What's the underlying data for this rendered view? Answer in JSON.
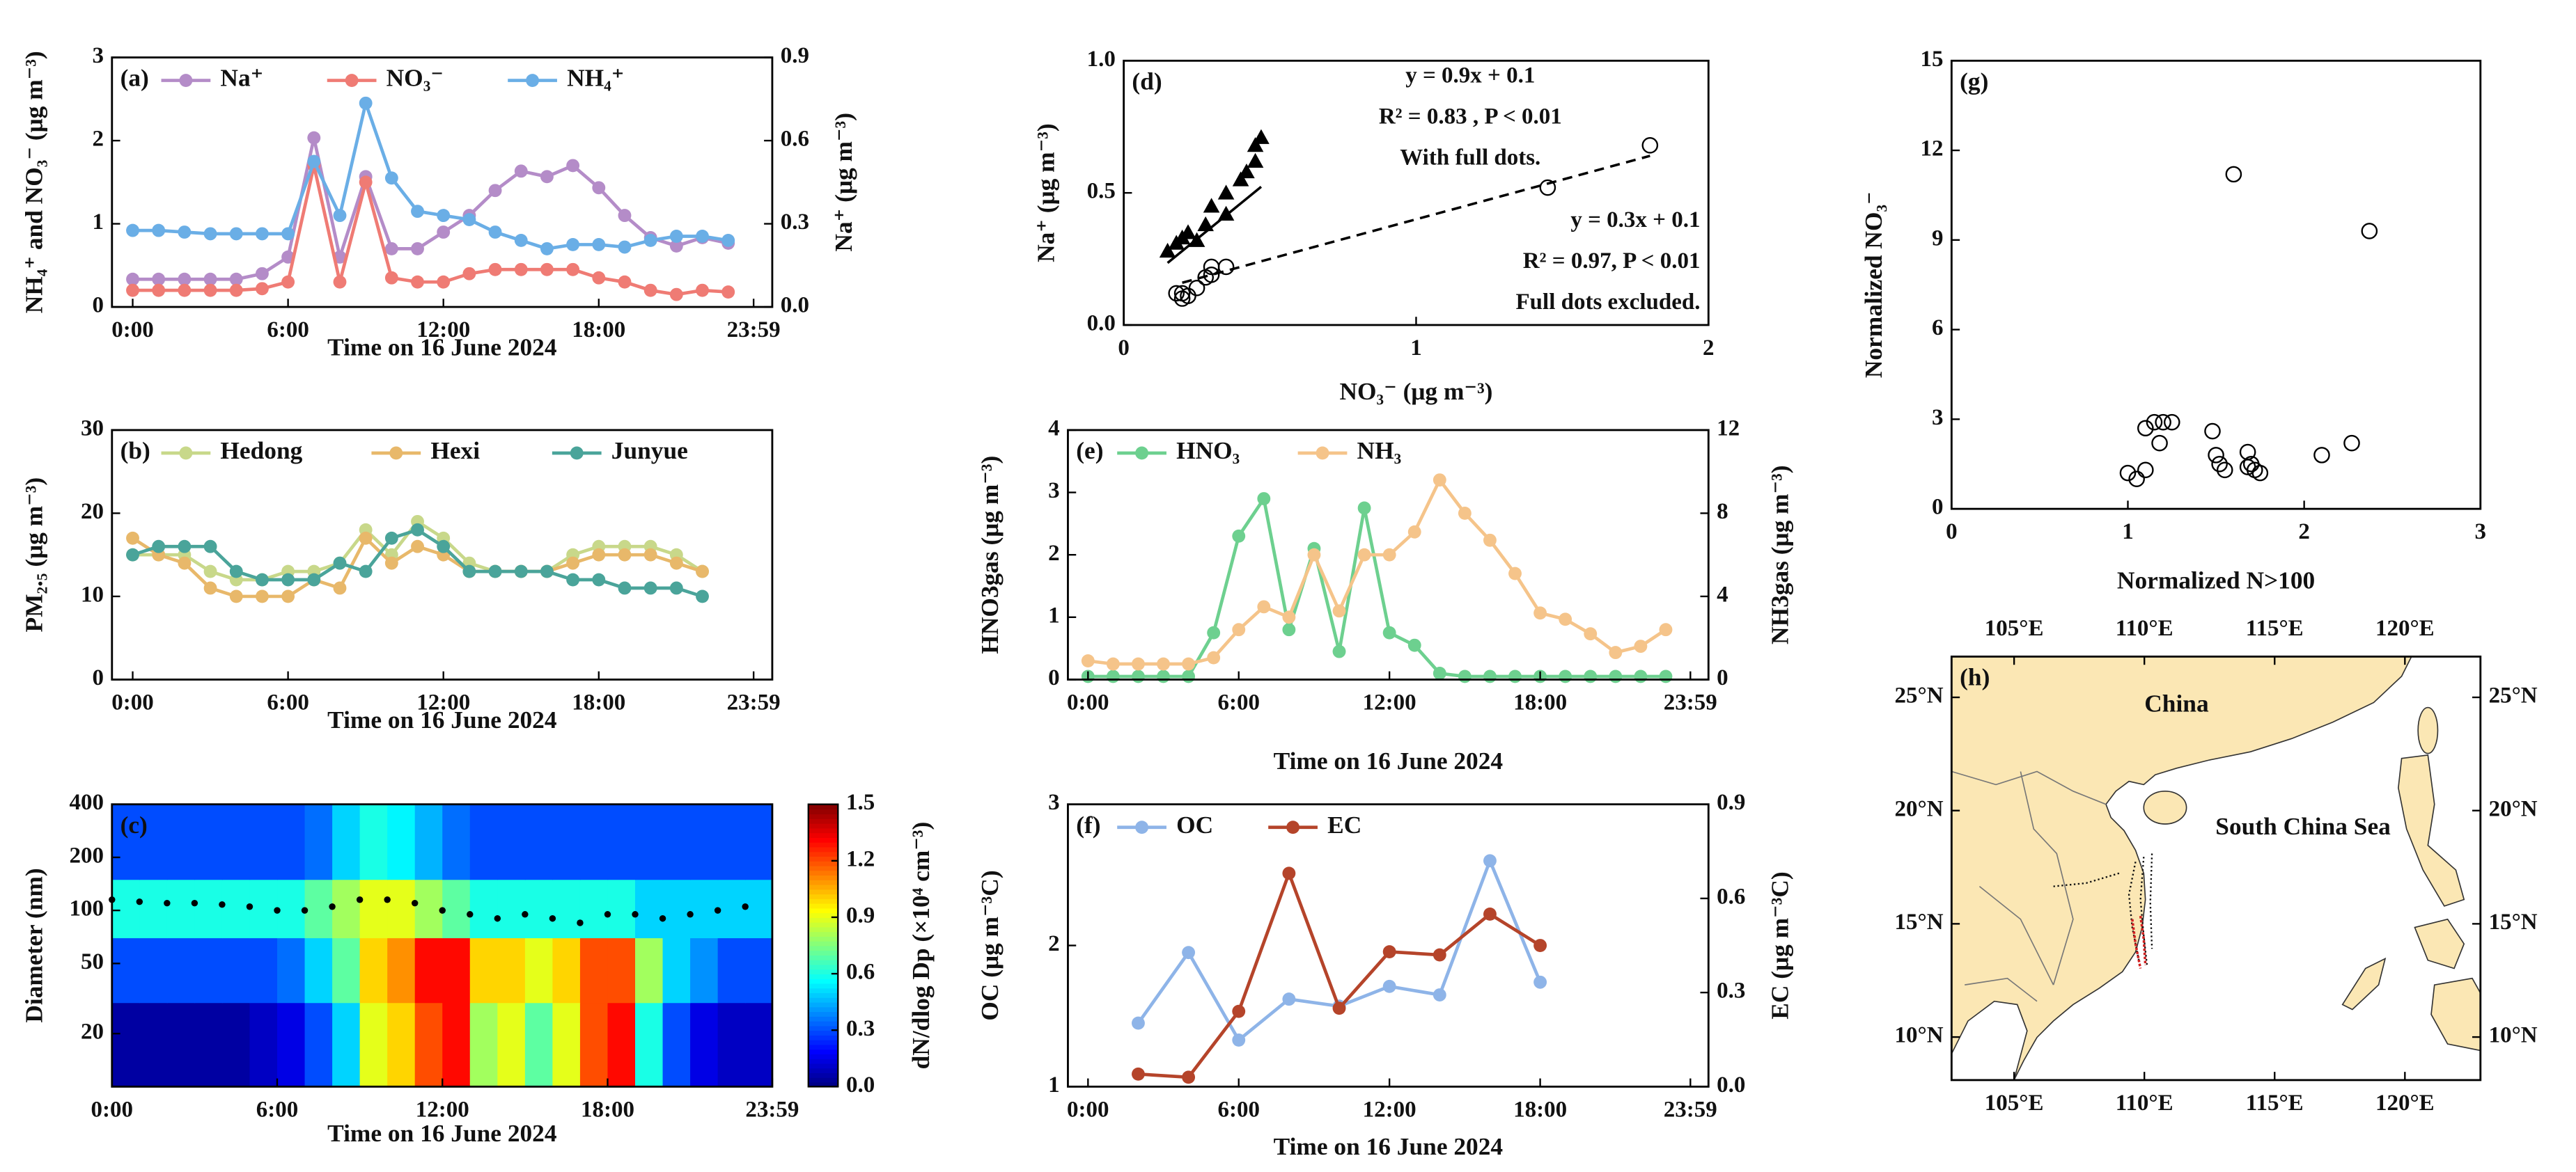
{
  "chart_data": [
    {
      "type": "line",
      "panel_label": "(a)",
      "xlabel": "Time on 16 June 2024",
      "ylabel": "NH₄⁺ and NO₃⁻ (μg m⁻³)",
      "y2label": "Na⁺ (μg m⁻³)",
      "x": [
        0,
        1,
        2,
        3,
        4,
        5,
        6,
        7,
        8,
        9,
        10,
        11,
        12,
        13,
        14,
        15,
        16,
        17,
        18,
        19,
        20,
        21,
        22,
        23
      ],
      "xlim": [
        -0.8,
        24.7
      ],
      "xticks": [
        {
          "value": 0,
          "label": "0:00"
        },
        {
          "value": 6,
          "label": "6:00"
        },
        {
          "value": 12,
          "label": "12:00"
        },
        {
          "value": 18,
          "label": "18:00"
        },
        {
          "value": 23.98,
          "label": "23:59"
        }
      ],
      "ylim": [
        0,
        3
      ],
      "yticks": [
        0,
        1,
        2,
        3
      ],
      "y2lim": [
        0,
        0.9
      ],
      "y2ticks": [
        {
          "value": 0,
          "label": "0.0"
        },
        0.3,
        0.6,
        0.9
      ],
      "series": [
        {
          "name": "Na⁺",
          "color": "#b48cc8",
          "axis": "y2",
          "values": [
            0.1,
            0.1,
            0.1,
            0.1,
            0.1,
            0.12,
            0.18,
            0.61,
            0.18,
            0.47,
            0.21,
            0.21,
            0.27,
            0.33,
            0.42,
            0.49,
            0.47,
            0.51,
            0.43,
            0.33,
            0.25,
            0.22,
            0.25,
            0.23
          ]
        },
        {
          "name": "NO₃⁻",
          "color": "#ef7b74",
          "values": [
            0.2,
            0.2,
            0.2,
            0.2,
            0.2,
            0.22,
            0.3,
            1.7,
            0.3,
            1.5,
            0.35,
            0.3,
            0.3,
            0.4,
            0.45,
            0.45,
            0.45,
            0.45,
            0.35,
            0.3,
            0.2,
            0.15,
            0.2,
            0.18
          ]
        },
        {
          "name": "NH₄⁺",
          "color": "#6aaee6",
          "values": [
            0.92,
            0.92,
            0.9,
            0.88,
            0.88,
            0.88,
            0.88,
            1.75,
            1.1,
            2.45,
            1.55,
            1.15,
            1.1,
            1.05,
            0.9,
            0.8,
            0.7,
            0.75,
            0.75,
            0.72,
            0.8,
            0.85,
            0.85,
            0.8
          ]
        }
      ]
    },
    {
      "type": "line",
      "panel_label": "(b)",
      "xlabel": "Time on 16 June 2024",
      "ylabel": "PM₂.₅ (μg m⁻³)",
      "x": [
        0,
        1,
        2,
        3,
        4,
        5,
        6,
        7,
        8,
        9,
        10,
        11,
        12,
        13,
        14,
        15,
        16,
        17,
        18,
        19,
        20,
        21,
        22
      ],
      "xlim": [
        -0.8,
        24.7
      ],
      "xticks": [
        {
          "value": 0,
          "label": "0:00"
        },
        {
          "value": 6,
          "label": "6:00"
        },
        {
          "value": 12,
          "label": "12:00"
        },
        {
          "value": 18,
          "label": "18:00"
        },
        {
          "value": 23.98,
          "label": "23:59"
        }
      ],
      "ylim": [
        0,
        30
      ],
      "yticks": [
        0,
        10,
        20,
        30
      ],
      "series": [
        {
          "name": "Hedong",
          "color": "#c8d88a",
          "values": [
            15,
            15,
            15,
            13,
            12,
            12,
            13,
            13,
            14,
            18,
            15,
            19,
            17,
            14,
            13,
            13,
            13,
            15,
            16,
            16,
            16,
            15,
            13
          ]
        },
        {
          "name": "Hexi",
          "color": "#e8b86a",
          "values": [
            17,
            15,
            14,
            11,
            10,
            10,
            10,
            12,
            11,
            17,
            14,
            16,
            15,
            13,
            13,
            13,
            13,
            14,
            15,
            15,
            15,
            14,
            13
          ]
        },
        {
          "name": "Junyue",
          "color": "#4aa49a",
          "values": [
            15,
            16,
            16,
            16,
            13,
            12,
            12,
            12,
            14,
            13,
            17,
            18,
            16,
            13,
            13,
            13,
            13,
            12,
            12,
            11,
            11,
            11,
            10
          ]
        }
      ]
    },
    {
      "type": "heatmap",
      "panel_label": "(c)",
      "xlabel": "Time on 16 June 2024",
      "ylabel": "Diameter (nm)",
      "zlabel": "dN/dlog Dp (×10⁴ cm⁻³)",
      "colormap": "jet",
      "ylog": true,
      "xlim": [
        0,
        23.98
      ],
      "xticks": [
        {
          "value": 0,
          "label": "0:00"
        },
        {
          "value": 6,
          "label": "6:00"
        },
        {
          "value": 12,
          "label": "12:00"
        },
        {
          "value": 18,
          "label": "18:00"
        },
        {
          "value": 23.98,
          "label": "23:59"
        }
      ],
      "ylim": [
        10,
        400
      ],
      "yticks": [
        20,
        50,
        100,
        200,
        400
      ],
      "zlim": [
        0,
        1.5
      ],
      "zticks": [
        {
          "value": 0,
          "label": "0.0"
        },
        0.3,
        0.6,
        0.9,
        1.2,
        1.5
      ],
      "x_edges": [
        0,
        1,
        2,
        3,
        4,
        5,
        6,
        7,
        8,
        9,
        10,
        11,
        12,
        13,
        14,
        15,
        16,
        17,
        18,
        19,
        20,
        21,
        22,
        23,
        23.98
      ],
      "y_edges": [
        10,
        30,
        70,
        150,
        400
      ],
      "z": [
        [
          0.05,
          0.05,
          0.05,
          0.05,
          0.05,
          0.1,
          0.15,
          0.3,
          0.5,
          0.9,
          1.0,
          1.2,
          1.3,
          0.8,
          0.9,
          0.7,
          0.9,
          1.2,
          1.3,
          0.6,
          0.3,
          0.15,
          0.1,
          0.1
        ],
        [
          0.3,
          0.3,
          0.3,
          0.3,
          0.3,
          0.3,
          0.35,
          0.5,
          0.7,
          1.0,
          1.1,
          1.3,
          1.3,
          1.0,
          1.0,
          0.9,
          1.0,
          1.2,
          1.2,
          0.8,
          0.5,
          0.4,
          0.3,
          0.3
        ],
        [
          0.6,
          0.6,
          0.6,
          0.6,
          0.6,
          0.6,
          0.6,
          0.7,
          0.8,
          0.9,
          0.9,
          0.8,
          0.7,
          0.6,
          0.6,
          0.6,
          0.6,
          0.6,
          0.6,
          0.5,
          0.5,
          0.5,
          0.5,
          0.5
        ],
        [
          0.3,
          0.3,
          0.3,
          0.3,
          0.3,
          0.3,
          0.3,
          0.35,
          0.5,
          0.6,
          0.55,
          0.45,
          0.35,
          0.3,
          0.3,
          0.3,
          0.3,
          0.3,
          0.3,
          0.3,
          0.3,
          0.3,
          0.3,
          0.3
        ]
      ],
      "series": [
        {
          "color": "#000000",
          "x": [
            0,
            1,
            2,
            3,
            4,
            5,
            6,
            7,
            8,
            9,
            10,
            11,
            12,
            13,
            14,
            15,
            16,
            17,
            18,
            19,
            20,
            21,
            22,
            23
          ],
          "values": [
            115,
            112,
            110,
            110,
            108,
            105,
            100,
            100,
            105,
            115,
            115,
            110,
            100,
            95,
            90,
            95,
            90,
            85,
            95,
            95,
            90,
            95,
            100,
            105
          ]
        }
      ]
    },
    {
      "type": "scatter",
      "panel_label": "(d)",
      "xlabel": "NO₃⁻ (μg m⁻³)",
      "ylabel": "Na⁺ (μg m⁻³)",
      "xlim": [
        0,
        2
      ],
      "xticks": [
        0,
        1,
        2
      ],
      "ylim": [
        0,
        1
      ],
      "yticks": [
        {
          "value": 0,
          "label": "0.0"
        },
        {
          "value": 0.5,
          "label": "0.5"
        },
        {
          "value": 1,
          "label": "1.0"
        }
      ],
      "series": [
        {
          "marker": "triangle",
          "color": "#000000",
          "x": [
            0.15,
            0.18,
            0.2,
            0.22,
            0.28,
            0.3,
            0.35,
            0.4,
            0.45,
            0.45,
            0.47,
            0.42,
            0.35,
            0.25
          ],
          "y": [
            0.28,
            0.31,
            0.33,
            0.35,
            0.38,
            0.45,
            0.5,
            0.55,
            0.62,
            0.68,
            0.71,
            0.58,
            0.42,
            0.32
          ]
        },
        {
          "marker": "circle",
          "color": "#000000",
          "x": [
            0.18,
            0.2,
            0.22,
            0.25,
            0.28,
            0.3,
            0.35,
            0.3,
            0.2,
            1.45,
            1.8
          ],
          "y": [
            0.12,
            0.1,
            0.11,
            0.14,
            0.18,
            0.22,
            0.22,
            0.19,
            0.12,
            0.52,
            0.68
          ]
        }
      ],
      "fits": [
        {
          "slope": 0.9,
          "intercept": 0.1,
          "range": [
            0.15,
            0.47
          ],
          "dash": false
        },
        {
          "slope": 0.3,
          "intercept": 0.1,
          "range": [
            0.2,
            1.8
          ],
          "dash": true
        }
      ],
      "annotations": [
        "y = 0.9x + 0.1",
        "R² = 0.83 , P < 0.01",
        "With full dots.",
        "y = 0.3x + 0.1",
        "R² = 0.97, P < 0.01",
        "Full dots excluded."
      ]
    },
    {
      "type": "line",
      "panel_label": "(e)",
      "xlabel": "Time on 16 June 2024",
      "ylabel": "HNO3gas (μg m⁻³)",
      "y2label": "NH3gas (μg m⁻³)",
      "x": [
        0,
        1,
        2,
        3,
        4,
        5,
        6,
        7,
        8,
        9,
        10,
        11,
        12,
        13,
        14,
        15,
        16,
        17,
        18,
        19,
        20,
        21,
        22,
        23
      ],
      "xlim": [
        -0.8,
        24.7
      ],
      "xticks": [
        {
          "value": 0,
          "label": "0:00"
        },
        {
          "value": 6,
          "label": "6:00"
        },
        {
          "value": 12,
          "label": "12:00"
        },
        {
          "value": 18,
          "label": "18:00"
        },
        {
          "value": 23.98,
          "label": "23:59"
        }
      ],
      "ylim": [
        0,
        4
      ],
      "yticks": [
        0,
        1,
        2,
        3,
        4
      ],
      "y2lim": [
        0,
        12
      ],
      "y2ticks": [
        0,
        4,
        8,
        12
      ],
      "series": [
        {
          "name": "HNO₃",
          "color": "#6dd08f",
          "values": [
            0.05,
            0.05,
            0.05,
            0.05,
            0.05,
            0.75,
            2.3,
            2.9,
            0.8,
            2.1,
            0.45,
            2.75,
            0.75,
            0.55,
            0.1,
            0.05,
            0.05,
            0.05,
            0.05,
            0.05,
            0.05,
            0.05,
            0.05,
            0.05
          ]
        },
        {
          "name": "NH₃",
          "color": "#f5c48a",
          "axis": "y2",
          "values": [
            0.9,
            0.75,
            0.75,
            0.75,
            0.75,
            1.05,
            2.4,
            3.5,
            3.0,
            6.0,
            3.3,
            6.0,
            6.0,
            7.1,
            9.6,
            8.0,
            6.7,
            5.1,
            3.2,
            2.9,
            2.2,
            1.3,
            1.6,
            2.4
          ]
        }
      ]
    },
    {
      "type": "line",
      "panel_label": "(f)",
      "xlabel": "Time on 16 June 2024",
      "ylabel": "OC (μg m⁻³C)",
      "y2label": "EC (μg m⁻³C)",
      "x": [
        2,
        4,
        6,
        8,
        10,
        12,
        14,
        16,
        18
      ],
      "xlim": [
        -0.8,
        24.7
      ],
      "xticks": [
        {
          "value": 0,
          "label": "0:00"
        },
        {
          "value": 6,
          "label": "6:00"
        },
        {
          "value": 12,
          "label": "12:00"
        },
        {
          "value": 18,
          "label": "18:00"
        },
        {
          "value": 23.98,
          "label": "23:59"
        }
      ],
      "ylim": [
        1,
        3
      ],
      "yticks": [
        1,
        2,
        3
      ],
      "y2lim": [
        0,
        0.9
      ],
      "y2ticks": [
        {
          "value": 0,
          "label": "0.0"
        },
        0.3,
        0.6,
        0.9
      ],
      "series": [
        {
          "name": "OC",
          "color": "#8eb4e8",
          "values": [
            1.45,
            1.95,
            1.33,
            1.62,
            1.57,
            1.71,
            1.65,
            2.6,
            1.74
          ]
        },
        {
          "name": "EC",
          "color": "#b5442a",
          "axis": "y2",
          "values": [
            0.04,
            0.03,
            0.24,
            0.68,
            0.25,
            0.43,
            0.42,
            0.55,
            0.45
          ]
        }
      ]
    },
    {
      "type": "scatter",
      "panel_label": "(g)",
      "xlabel": "Normalized N>100",
      "ylabel": "Normalized NO₃⁻",
      "xlim": [
        0,
        3
      ],
      "xticks": [
        0,
        1,
        2,
        3
      ],
      "ylim": [
        0,
        15
      ],
      "yticks": [
        0,
        3,
        6,
        9,
        12,
        15
      ],
      "series": [
        {
          "marker": "circle",
          "color": "#000000",
          "x": [
            1.0,
            1.05,
            1.1,
            1.1,
            1.15,
            1.18,
            1.2,
            1.25,
            1.48,
            1.5,
            1.52,
            1.55,
            1.6,
            1.68,
            1.7,
            1.72,
            1.75,
            1.68,
            2.1,
            2.27,
            2.37
          ],
          "y": [
            1.2,
            1.0,
            1.3,
            2.7,
            2.9,
            2.2,
            2.9,
            2.9,
            2.6,
            1.8,
            1.5,
            1.3,
            11.2,
            1.9,
            1.5,
            1.3,
            1.2,
            1.4,
            1.8,
            2.2,
            9.3
          ]
        }
      ]
    },
    {
      "type": "map",
      "panel_label": "(h)",
      "labels": [
        "China",
        "South China Sea"
      ],
      "xlim": [
        102.6,
        122.9
      ],
      "xticks": [
        {
          "value": 105,
          "label": "105°E"
        },
        {
          "value": 110,
          "label": "110°E"
        },
        {
          "value": 115,
          "label": "115°E"
        },
        {
          "value": 120,
          "label": "120°E"
        }
      ],
      "ylim": [
        8.1,
        26.8
      ],
      "yticks": [
        {
          "value": 10,
          "label": "10°N"
        },
        {
          "value": 15,
          "label": "15°N"
        },
        {
          "value": 20,
          "label": "20°N"
        },
        {
          "value": 25,
          "label": "25°N"
        }
      ]
    }
  ]
}
